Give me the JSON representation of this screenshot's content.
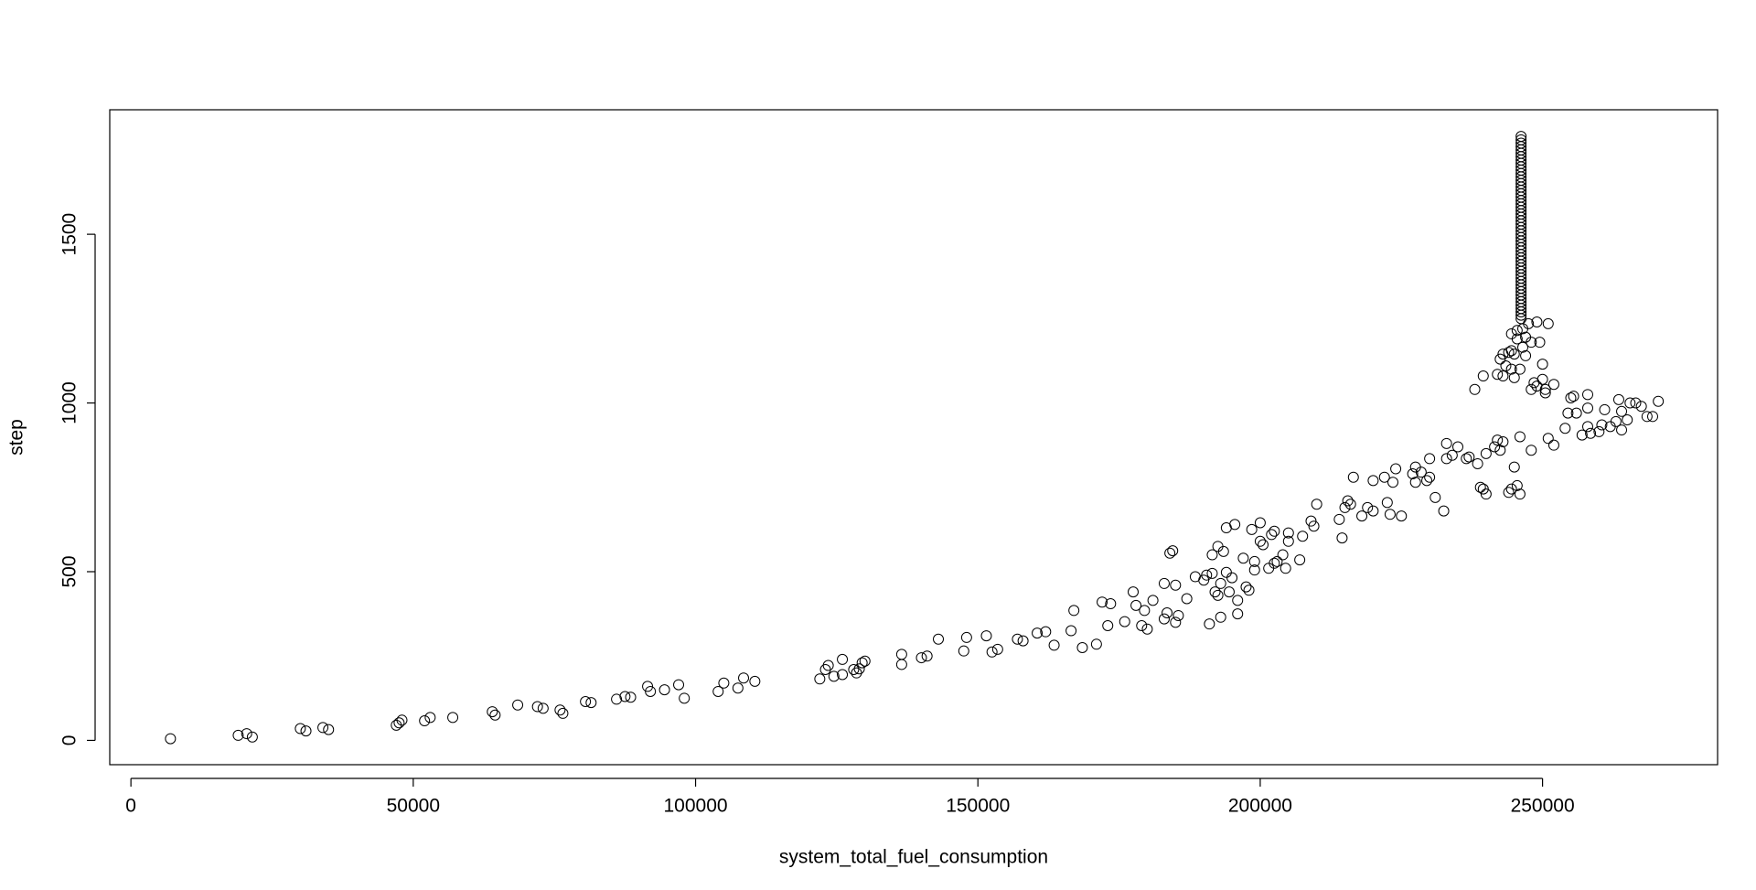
{
  "chart_data": {
    "type": "scatter",
    "x_label": "system_total_fuel_consumption",
    "y_label": "step",
    "color": "#000000",
    "xlim": [
      -3750,
      281000
    ],
    "ylim": [
      -72,
      1869
    ],
    "xticks": [
      0,
      50000,
      100000,
      150000,
      200000,
      250000
    ],
    "yticks": [
      0,
      500,
      1000,
      1500
    ],
    "x": [
      7000,
      19000,
      20500,
      21500,
      30000,
      31000,
      34000,
      35000,
      47000,
      47500,
      48000,
      52000,
      53000,
      57000,
      64000,
      64500,
      68500,
      72000,
      73000,
      76000,
      76500,
      80500,
      81500,
      86000,
      87500,
      88500,
      91500,
      92000,
      94500,
      97000,
      98000,
      104000,
      105000,
      107500,
      108500,
      110500,
      122000,
      123000,
      123500,
      124500,
      126000,
      126000,
      128000,
      128500,
      129000,
      129500,
      130000,
      136500,
      136500,
      140000,
      141000,
      143000,
      147500,
      148000,
      151500,
      152500,
      153500,
      157000,
      158000,
      160500,
      162000,
      163500,
      166500,
      167000,
      168500,
      171000,
      172000,
      173000,
      173500,
      176000,
      177500,
      178000,
      179000,
      179500,
      180000,
      181000,
      183000,
      183000,
      183500,
      184000,
      184500,
      185000,
      185000,
      185500,
      187000,
      188500,
      190000,
      190500,
      191000,
      191500,
      191500,
      192000,
      192500,
      192500,
      193000,
      193500,
      193000,
      194000,
      194000,
      194500,
      195000,
      195500,
      196000,
      196000,
      197000,
      197500,
      198000,
      198500,
      199000,
      199000,
      200000,
      200000,
      200500,
      201500,
      202000,
      202500,
      202500,
      203000,
      204000,
      204500,
      205000,
      205000,
      207000,
      207500,
      209000,
      209500,
      210000,
      214000,
      214500,
      215000,
      215500,
      216000,
      216500,
      218000,
      219000,
      220000,
      220000,
      222000,
      222500,
      223000,
      223500,
      224000,
      225000,
      227000,
      227500,
      227500,
      228500,
      229500,
      230000,
      230000,
      231000,
      232500,
      233000,
      233000,
      234000,
      235000,
      236500,
      237000,
      238500,
      239000,
      239500,
      240000,
      240000,
      241500,
      242000,
      242500,
      243000,
      244000,
      244500,
      245000,
      245500,
      246000,
      246000,
      248000,
      251000,
      252000,
      254000,
      254500,
      255000,
      255500,
      256000,
      257000,
      258000,
      258000,
      258000,
      258500,
      260000,
      260500,
      261000,
      262000,
      263000,
      263500,
      264000,
      264000,
      265000,
      265500,
      266500,
      267500,
      268500,
      269500,
      270500,
      238000,
      239500,
      242000,
      242500,
      243000,
      243500,
      244000,
      244500,
      244500,
      245000,
      245500,
      245000,
      245500,
      246000,
      246500,
      246500,
      247000,
      247000,
      247500,
      248000,
      248000,
      248500,
      249000,
      249000,
      249500,
      250000,
      250000,
      250500,
      251000,
      252000,
      250500,
      243000,
      244500,
      246200,
      246200,
      246200,
      246200,
      246200,
      246200,
      246200,
      246200,
      246200,
      246200,
      246200,
      246200,
      246200,
      246200,
      246200,
      246200,
      246200,
      246200,
      246200,
      246200,
      246200,
      246200,
      246200,
      246200,
      246200,
      246200,
      246200,
      246200,
      246200,
      246200,
      246200,
      246200,
      246200,
      246200,
      246200,
      246200,
      246200,
      246200,
      246200,
      246200,
      246200,
      246200,
      246200,
      246200,
      246200,
      246200,
      246200,
      246200,
      246200,
      246200,
      246200,
      246200,
      246200,
      246200,
      246200
    ],
    "values": [
      5,
      15,
      20,
      10,
      35,
      28,
      38,
      32,
      45,
      52,
      60,
      58,
      68,
      68,
      85,
      75,
      105,
      100,
      95,
      90,
      80,
      115,
      112,
      122,
      130,
      128,
      160,
      145,
      150,
      165,
      125,
      145,
      170,
      155,
      185,
      175,
      182,
      210,
      222,
      190,
      195,
      240,
      210,
      200,
      212,
      230,
      235,
      225,
      255,
      245,
      250,
      300,
      265,
      305,
      310,
      262,
      270,
      300,
      295,
      318,
      322,
      282,
      325,
      385,
      275,
      285,
      410,
      340,
      405,
      352,
      440,
      400,
      340,
      385,
      330,
      415,
      465,
      360,
      378,
      555,
      562,
      460,
      350,
      370,
      420,
      485,
      475,
      490,
      345,
      550,
      495,
      440,
      430,
      575,
      465,
      560,
      365,
      630,
      498,
      440,
      482,
      640,
      375,
      415,
      540,
      455,
      445,
      625,
      505,
      530,
      645,
      590,
      580,
      510,
      610,
      525,
      620,
      530,
      550,
      510,
      615,
      590,
      535,
      605,
      650,
      635,
      700,
      655,
      600,
      690,
      710,
      700,
      780,
      665,
      690,
      680,
      770,
      780,
      705,
      670,
      765,
      805,
      665,
      790,
      810,
      765,
      795,
      770,
      780,
      835,
      720,
      680,
      835,
      880,
      845,
      870,
      835,
      840,
      820,
      750,
      745,
      730,
      850,
      870,
      890,
      860,
      885,
      735,
      745,
      810,
      755,
      900,
      730,
      860,
      895,
      875,
      925,
      970,
      1015,
      1020,
      970,
      905,
      930,
      985,
      1025,
      910,
      915,
      935,
      980,
      930,
      945,
      1010,
      975,
      920,
      950,
      1000,
      1000,
      990,
      960,
      960,
      1005,
      1040,
      1080,
      1085,
      1130,
      1080,
      1110,
      1150,
      1100,
      1205,
      1075,
      1215,
      1145,
      1190,
      1100,
      1165,
      1220,
      1195,
      1140,
      1235,
      1180,
      1040,
      1060,
      1240,
      1050,
      1180,
      1115,
      1070,
      1030,
      1235,
      1055,
      1040,
      1145,
      1155,
      1250,
      1260,
      1270,
      1280,
      1290,
      1300,
      1310,
      1320,
      1330,
      1340,
      1350,
      1360,
      1370,
      1380,
      1390,
      1400,
      1410,
      1420,
      1430,
      1440,
      1450,
      1460,
      1470,
      1480,
      1490,
      1500,
      1510,
      1520,
      1530,
      1540,
      1550,
      1560,
      1570,
      1580,
      1590,
      1600,
      1610,
      1620,
      1630,
      1640,
      1650,
      1660,
      1670,
      1680,
      1690,
      1700,
      1710,
      1720,
      1730,
      1740,
      1750,
      1760,
      1770,
      1780,
      1790
    ]
  }
}
